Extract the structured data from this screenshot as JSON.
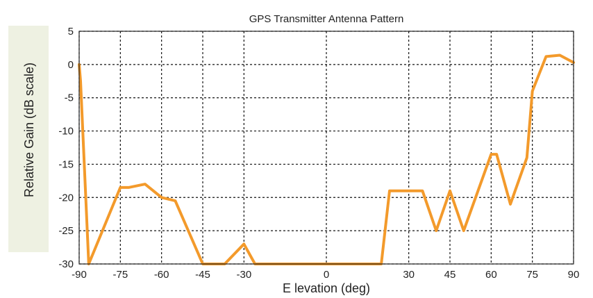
{
  "chart_data": {
    "type": "line",
    "title": "GPS Transmitter Antenna Pattern",
    "xlabel": "E levation (deg)",
    "ylabel": "Relative Gain (dB scale)",
    "xlim": [
      -90,
      90
    ],
    "ylim": [
      -30,
      5
    ],
    "x_ticks": [
      -90,
      -75,
      -60,
      -45,
      -30,
      0,
      30,
      45,
      60,
      75,
      90
    ],
    "x_tick_labels": [
      "-90",
      "-75",
      "-60",
      "-45",
      "-30",
      "0",
      "30",
      "45",
      "60",
      "75",
      "90"
    ],
    "y_ticks": [
      5,
      0,
      -5,
      -10,
      -15,
      -20,
      -25,
      -30
    ],
    "y_tick_labels": [
      "5",
      "0",
      "-5",
      "-10",
      "-15",
      "-20",
      "-25",
      "-30"
    ],
    "grid": true,
    "series": [
      {
        "color": "#f39a2b",
        "x": [
          -90,
          -89.5,
          -86.5,
          -75,
          -72,
          -66,
          -60,
          -55,
          -45,
          -37,
          -30,
          -26,
          20,
          23,
          25,
          30,
          35,
          40,
          45,
          50,
          60,
          62,
          67,
          73,
          75,
          80,
          85,
          90
        ],
        "y": [
          0,
          -2.5,
          -30,
          -18.5,
          -18.5,
          -18,
          -20,
          -20.5,
          -30,
          -30,
          -27,
          -30,
          -30,
          -19,
          -19,
          -19,
          -19,
          -25,
          -19,
          -25,
          -13.5,
          -13.5,
          -21,
          -14,
          -4,
          1.2,
          1.4,
          0.3
        ]
      }
    ]
  }
}
